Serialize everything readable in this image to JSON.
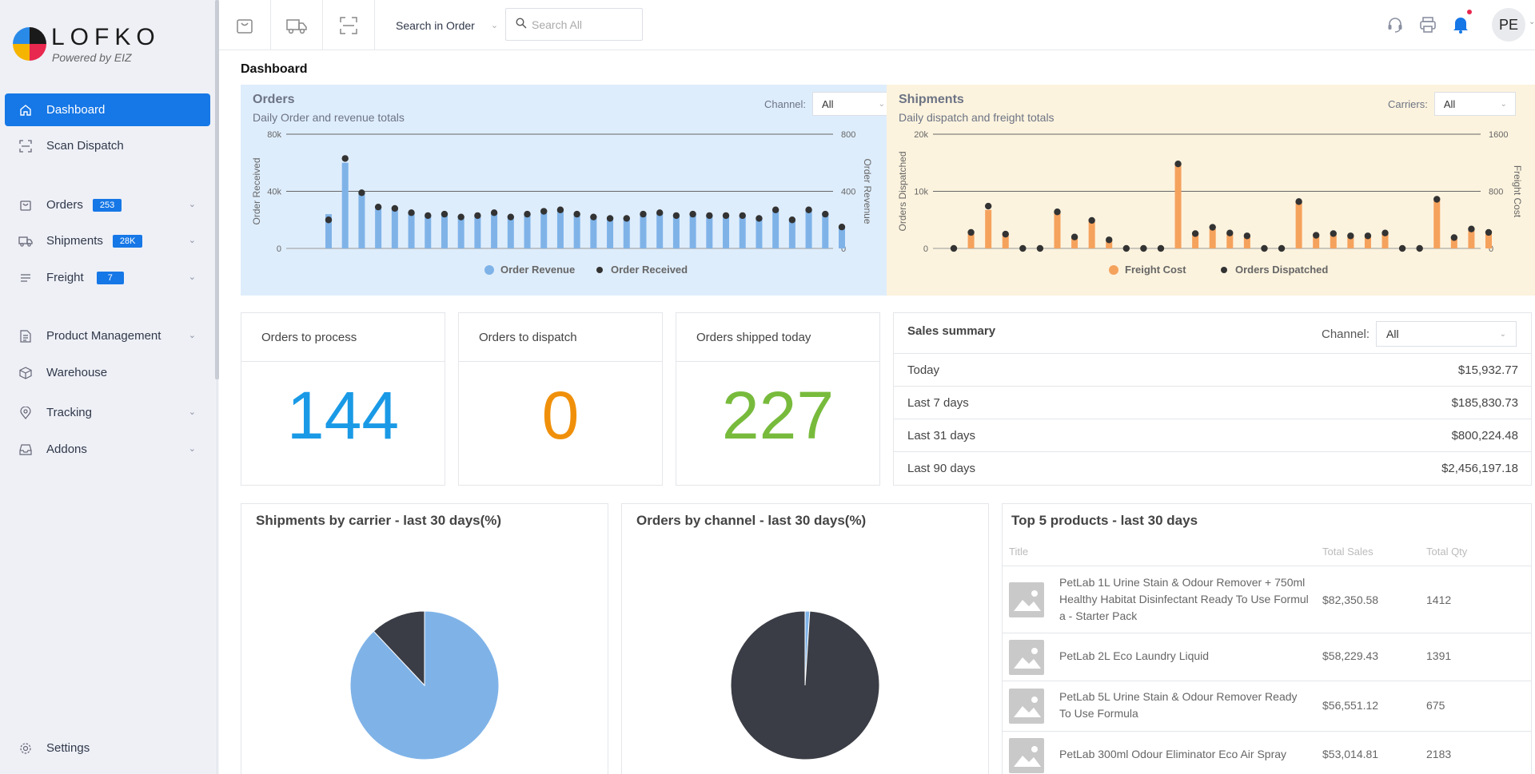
{
  "sidebar": {
    "logo": {
      "name": "LOFKO",
      "tagline": "Powered by EIZ"
    },
    "items": [
      {
        "label": "Dashboard",
        "icon": "home-icon",
        "active": true
      },
      {
        "label": "Scan Dispatch",
        "icon": "scan-icon"
      },
      {
        "label": "Orders",
        "icon": "bag-icon",
        "badge": "253"
      },
      {
        "label": "Shipments",
        "icon": "truck-icon",
        "badge": "28K"
      },
      {
        "label": "Freight",
        "icon": "list-icon",
        "badge": "7"
      },
      {
        "label": "Product Management",
        "icon": "document-icon"
      },
      {
        "label": "Warehouse",
        "icon": "box-icon"
      },
      {
        "label": "Tracking",
        "icon": "location-pin-icon"
      },
      {
        "label": "Addons",
        "icon": "inbox-icon"
      }
    ],
    "settings": {
      "label": "Settings",
      "icon": "gear-icon"
    }
  },
  "topbar": {
    "search_scope": "Search in Order",
    "search_placeholder": "Search All",
    "avatar": "PE",
    "accent": "#1677e6",
    "notification_dot": "#e8284e"
  },
  "page": {
    "title": "Dashboard"
  },
  "orders_chart": {
    "title": "Orders",
    "subtitle": "Daily Order and revenue totals",
    "filter_label": "Channel:",
    "filter_value": "All",
    "background": "#deedfc"
  },
  "shipments_chart": {
    "title": "Shipments",
    "subtitle": "Daily dispatch and freight totals",
    "filter_label": "Carriers:",
    "filter_value": "All",
    "background": "#fcf3de"
  },
  "stats": [
    {
      "label": "Orders to process",
      "value": "144",
      "color": "#1a9ae6"
    },
    {
      "label": "Orders to dispatch",
      "value": "0",
      "color": "#f0900a"
    },
    {
      "label": "Orders shipped today",
      "value": "227",
      "color": "#78bb3c"
    }
  ],
  "sales_summary": {
    "title": "Sales summary",
    "channel_label": "Channel:",
    "channel_value": "All",
    "rows": [
      {
        "label": "Today",
        "value": "$15,932.77"
      },
      {
        "label": "Last 7 days",
        "value": "$185,830.73"
      },
      {
        "label": "Last 31 days",
        "value": "$800,224.48"
      },
      {
        "label": "Last 90 days",
        "value": "$2,456,197.18"
      }
    ]
  },
  "carrier_pie": {
    "title": "Shipments by carrier - last 30 days(%)"
  },
  "channel_pie": {
    "title": "Orders by channel - last 30 days(%)"
  },
  "top_products": {
    "title": "Top 5 products - last 30 days",
    "headers": {
      "title": "Title",
      "sales": "Total Sales",
      "qty": "Total Qty"
    },
    "rows": [
      {
        "name": "PetLab 1L Urine Stain & Odour Remover + 750ml Healthy Habitat Disinfectant Ready To Use Formula - Starter Pack",
        "sales": "$82,350.58",
        "qty": "1412"
      },
      {
        "name": "PetLab 2L Eco Laundry Liquid",
        "sales": "$58,229.43",
        "qty": "1391"
      },
      {
        "name": "PetLab 5L Urine Stain & Odour Remover Ready To Use Formula",
        "sales": "$56,551.12",
        "qty": "675"
      },
      {
        "name": "PetLab 300ml Odour Eliminator Eco Air Spray",
        "sales": "$53,014.81",
        "qty": "2183"
      }
    ]
  },
  "chart_data": [
    {
      "type": "bar",
      "name": "orders",
      "ylabel": "Order Received",
      "y2label": "Order Revenue",
      "y_ticks": [
        "0",
        "40k",
        "80k"
      ],
      "y2_ticks": [
        "0",
        "400",
        "800"
      ],
      "ylim": [
        0,
        80000
      ],
      "y2lim": [
        0,
        800
      ],
      "legend_position": "bottom",
      "series": [
        {
          "name": "Order Revenue",
          "kind": "bar",
          "color": "#7fb3e8",
          "axis": "left",
          "values": [
            24000,
            60000,
            40000,
            29000,
            28000,
            25000,
            23000,
            24000,
            22000,
            23000,
            25000,
            22000,
            24000,
            26000,
            27000,
            24000,
            22000,
            22000,
            21000,
            24000,
            25000,
            23000,
            24000,
            23000,
            23000,
            23000,
            21000,
            26000,
            21000,
            27000,
            24000,
            14000
          ]
        },
        {
          "name": "Order Received",
          "kind": "point",
          "color": "#333333",
          "axis": "right",
          "values": [
            200,
            630,
            390,
            290,
            280,
            250,
            230,
            240,
            220,
            230,
            250,
            220,
            240,
            260,
            270,
            240,
            220,
            210,
            210,
            240,
            250,
            230,
            240,
            230,
            230,
            230,
            210,
            270,
            200,
            270,
            240,
            150
          ]
        }
      ]
    },
    {
      "type": "bar",
      "name": "shipments",
      "ylabel": "Orders Dispatched",
      "y2label": "Freight Cost",
      "y_ticks": [
        "0",
        "10k",
        "20k"
      ],
      "y2_ticks": [
        "0",
        "800",
        "1600"
      ],
      "ylim": [
        0,
        20000
      ],
      "y2lim": [
        0,
        1600
      ],
      "legend_position": "bottom",
      "series": [
        {
          "name": "Freight Cost",
          "kind": "bar",
          "color": "#f5a25d",
          "axis": "right",
          "values": [
            0,
            200,
            540,
            190,
            0,
            0,
            500,
            160,
            370,
            110,
            0,
            0,
            0,
            1180,
            190,
            270,
            200,
            160,
            0,
            0,
            640,
            170,
            190,
            160,
            160,
            200,
            0,
            0,
            670,
            140,
            250,
            200
          ]
        },
        {
          "name": "Orders Dispatched",
          "kind": "point",
          "color": "#333333",
          "axis": "left",
          "values": [
            0,
            2800,
            7400,
            2500,
            0,
            0,
            6400,
            2000,
            4900,
            1500,
            0,
            0,
            0,
            14800,
            2600,
            3700,
            2700,
            2200,
            0,
            0,
            8200,
            2300,
            2600,
            2200,
            2200,
            2700,
            0,
            0,
            8600,
            1900,
            3400,
            2800
          ]
        }
      ]
    },
    {
      "type": "pie",
      "name": "carrier_pie",
      "series": [
        {
          "name": "",
          "values": [
            88,
            12
          ],
          "colors": [
            "#7fb3e8",
            "#3a3d45"
          ]
        }
      ]
    },
    {
      "type": "pie",
      "name": "channel_pie",
      "series": [
        {
          "name": "",
          "values": [
            1,
            99
          ],
          "colors": [
            "#7fb3e8",
            "#3a3d45"
          ]
        }
      ]
    }
  ]
}
